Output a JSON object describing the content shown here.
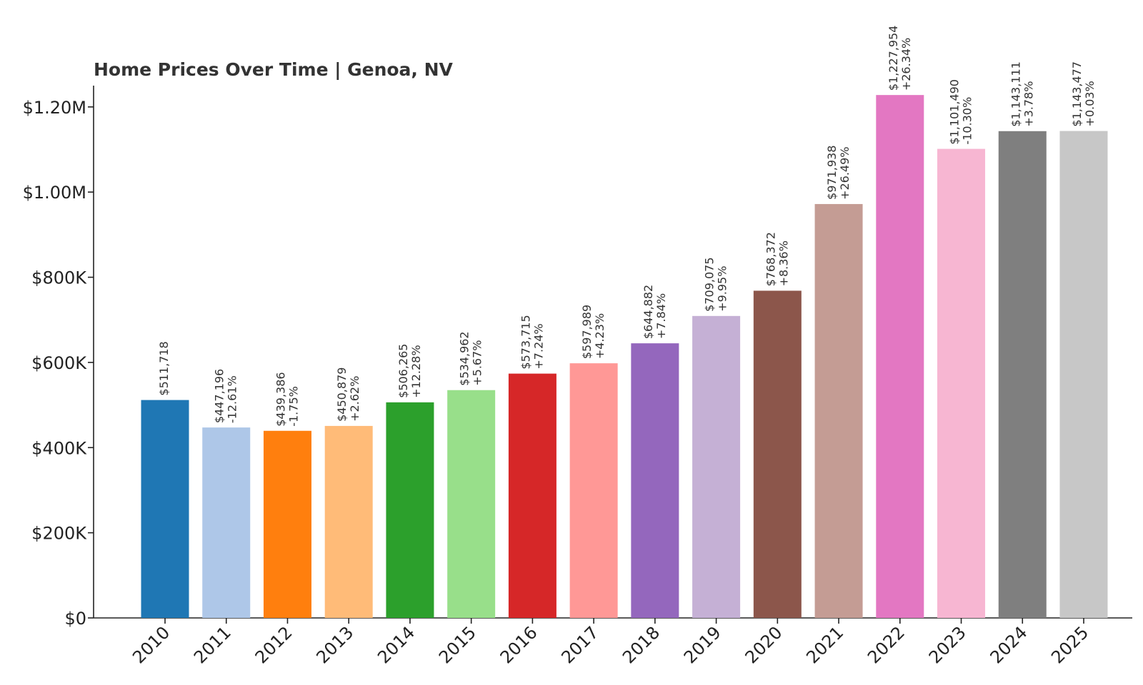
{
  "chart_data": {
    "type": "bar",
    "title": "Home Prices Over Time | Genoa, NV",
    "xlabel": "",
    "ylabel": "",
    "ylim": [
      0,
      1250000
    ],
    "yticks": [
      0,
      200000,
      400000,
      600000,
      800000,
      1000000,
      1200000
    ],
    "ytick_labels": [
      "$0",
      "$200K",
      "$400K",
      "$600K",
      "$800K",
      "$1.00M",
      "$1.20M"
    ],
    "categories": [
      "2010",
      "2011",
      "2012",
      "2013",
      "2014",
      "2015",
      "2016",
      "2017",
      "2018",
      "2019",
      "2020",
      "2021",
      "2022",
      "2023",
      "2024",
      "2025"
    ],
    "values": [
      511718,
      447196,
      439386,
      450879,
      506265,
      534962,
      573715,
      597989,
      644882,
      709075,
      768372,
      971938,
      1227954,
      1101490,
      1143111,
      1143477
    ],
    "value_labels": [
      "$511,718",
      "$447,196",
      "$439,386",
      "$450,879",
      "$506,265",
      "$534,962",
      "$573,715",
      "$597,989",
      "$644,882",
      "$709,075",
      "$768,372",
      "$971,938",
      "$1,227,954",
      "$1,101,490",
      "$1,143,111",
      "$1,143,477"
    ],
    "change_labels": [
      "",
      "-12.61%",
      "-1.75%",
      "+2.62%",
      "+12.28%",
      "+5.67%",
      "+7.24%",
      "+4.23%",
      "+7.84%",
      "+9.95%",
      "+8.36%",
      "+26.49%",
      "+26.34%",
      "-10.30%",
      "+3.78%",
      "+0.03%"
    ],
    "colors": [
      "#1f77b4",
      "#aec7e8",
      "#ff7f0e",
      "#ffbb78",
      "#2ca02c",
      "#98df8a",
      "#d62728",
      "#ff9896",
      "#9467bd",
      "#c5b0d5",
      "#8c564b",
      "#c49c94",
      "#e377c2",
      "#f7b6d2",
      "#7f7f7f",
      "#c7c7c7"
    ],
    "grid": false,
    "legend": "none"
  }
}
